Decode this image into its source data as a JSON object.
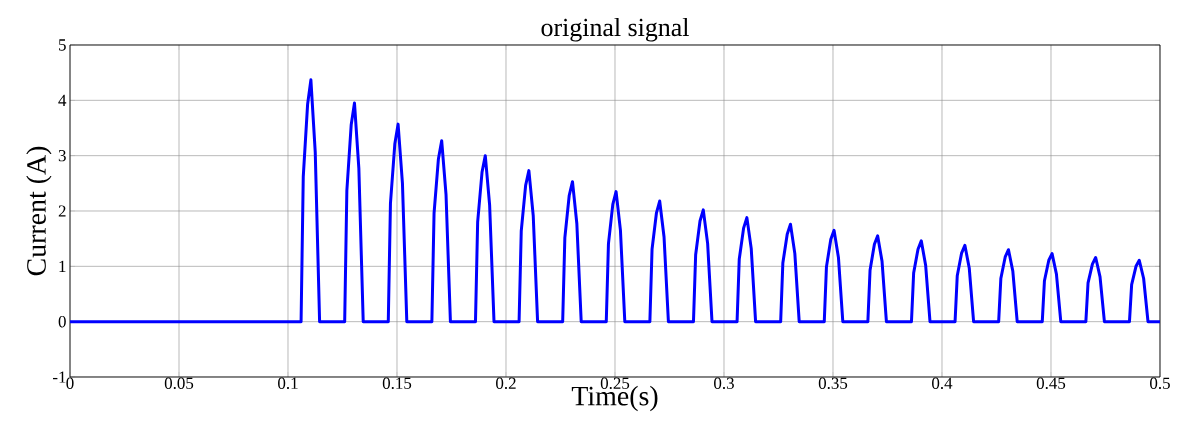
{
  "chart_data": {
    "type": "line",
    "title": "original signal",
    "xlabel": "Time(s)",
    "ylabel": "Current (A)",
    "xlim": [
      0,
      0.5
    ],
    "ylim": [
      -1,
      5
    ],
    "xticks": [
      0,
      0.05,
      0.1,
      0.15,
      0.2,
      0.25,
      0.3,
      0.35,
      0.4,
      0.45,
      0.5
    ],
    "yticks": [
      -1,
      0,
      1,
      2,
      3,
      4,
      5
    ],
    "grid": true,
    "marker": "none",
    "line_style": "solid",
    "series": [
      {
        "color": "#0000ff",
        "x": [
          0,
          0.106,
          0.107,
          0.109,
          0.1105,
          0.1125,
          0.1145,
          0.126,
          0.127,
          0.129,
          0.1305,
          0.1325,
          0.1345,
          0.146,
          0.147,
          0.149,
          0.1505,
          0.1525,
          0.1545,
          0.166,
          0.167,
          0.169,
          0.1705,
          0.1725,
          0.1745,
          0.186,
          0.187,
          0.189,
          0.1905,
          0.1925,
          0.1945,
          0.206,
          0.207,
          0.209,
          0.2105,
          0.2125,
          0.2145,
          0.226,
          0.227,
          0.229,
          0.2305,
          0.2325,
          0.2345,
          0.246,
          0.247,
          0.249,
          0.2505,
          0.2525,
          0.2545,
          0.266,
          0.267,
          0.269,
          0.2705,
          0.2725,
          0.2745,
          0.286,
          0.287,
          0.289,
          0.2905,
          0.2925,
          0.2945,
          0.306,
          0.307,
          0.309,
          0.3105,
          0.3125,
          0.3145,
          0.326,
          0.327,
          0.329,
          0.3305,
          0.3325,
          0.3345,
          0.346,
          0.347,
          0.349,
          0.3505,
          0.3525,
          0.3545,
          0.366,
          0.367,
          0.369,
          0.3705,
          0.3725,
          0.3745,
          0.386,
          0.387,
          0.389,
          0.3905,
          0.3925,
          0.3945,
          0.406,
          0.407,
          0.409,
          0.4105,
          0.4125,
          0.4145,
          0.426,
          0.427,
          0.429,
          0.4305,
          0.4325,
          0.4345,
          0.446,
          0.447,
          0.449,
          0.4505,
          0.4525,
          0.4545,
          0.466,
          0.467,
          0.469,
          0.4705,
          0.4725,
          0.4745,
          0.486,
          0.487,
          0.489,
          0.4905,
          0.4925,
          0.4945,
          0.5
        ],
        "values": [
          0,
          0,
          2.62,
          3.93,
          4.37,
          3.06,
          0,
          0,
          2.37,
          3.56,
          3.95,
          2.77,
          0,
          0,
          2.14,
          3.21,
          3.57,
          2.5,
          0,
          0,
          1.96,
          2.94,
          3.27,
          2.29,
          0,
          0,
          1.8,
          2.7,
          3.0,
          2.1,
          0,
          0,
          1.64,
          2.46,
          2.73,
          1.91,
          0,
          0,
          1.52,
          2.28,
          2.53,
          1.77,
          0,
          0,
          1.41,
          2.12,
          2.35,
          1.65,
          0,
          0,
          1.31,
          1.96,
          2.18,
          1.53,
          0,
          0,
          1.21,
          1.82,
          2.02,
          1.41,
          0,
          0,
          1.13,
          1.69,
          1.88,
          1.32,
          0,
          0,
          1.06,
          1.58,
          1.76,
          1.23,
          0,
          0,
          0.99,
          1.49,
          1.65,
          1.16,
          0,
          0,
          0.93,
          1.4,
          1.55,
          1.09,
          0,
          0,
          0.88,
          1.31,
          1.46,
          1.02,
          0,
          0,
          0.83,
          1.24,
          1.38,
          0.97,
          0,
          0,
          0.78,
          1.17,
          1.3,
          0.91,
          0,
          0,
          0.74,
          1.11,
          1.23,
          0.86,
          0,
          0,
          0.7,
          1.04,
          1.16,
          0.81,
          0,
          0,
          0.67,
          1.0,
          1.11,
          0.78,
          0,
          0
        ]
      }
    ]
  }
}
